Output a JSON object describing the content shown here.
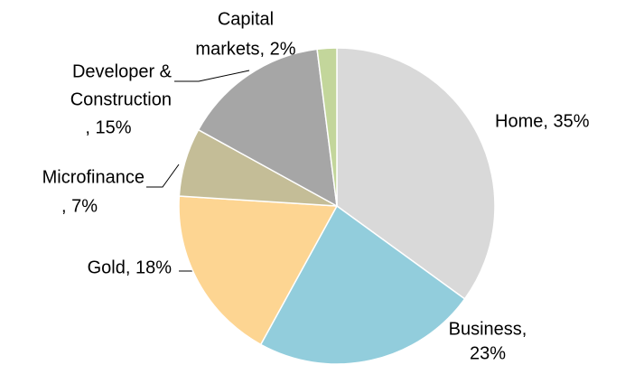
{
  "chart_data": {
    "type": "pie",
    "values": [
      35,
      23,
      18,
      7,
      15,
      2
    ],
    "value_labels": [
      [
        "Home, 35%"
      ],
      [
        "Business,",
        "23%"
      ],
      [
        "Gold, 18%"
      ],
      [
        "Microfinance",
        ", 7%"
      ],
      [
        "Developer &",
        "Construction",
        ", 15%"
      ],
      [
        "Capital",
        "markets, 2%"
      ]
    ],
    "colors": [
      "#d9d9d9",
      "#92cddc",
      "#fdd592",
      "#c4bd97",
      "#a6a6a6",
      "#c3d69b"
    ]
  }
}
